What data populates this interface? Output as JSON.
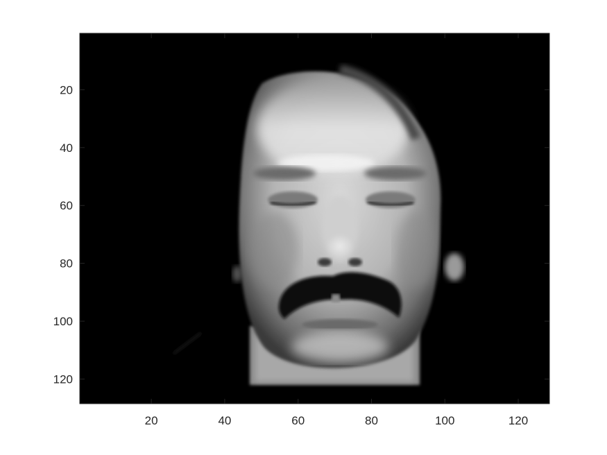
{
  "figure": {
    "background": "#ffffff",
    "axis_color": "#262626"
  },
  "image": {
    "subject": "grayscale face photograph",
    "colormap": "gray",
    "x_range": [
      0.5,
      128.5
    ],
    "y_range": [
      0.5,
      128.5
    ],
    "y_direction": "reverse"
  },
  "axes": {
    "x_ticks": [
      20,
      40,
      60,
      80,
      100,
      120
    ],
    "y_ticks": [
      20,
      40,
      60,
      80,
      100,
      120
    ],
    "x_tick_labels": [
      "20",
      "40",
      "60",
      "80",
      "100",
      "120"
    ],
    "y_tick_labels": [
      "20",
      "40",
      "60",
      "80",
      "100",
      "120"
    ]
  }
}
